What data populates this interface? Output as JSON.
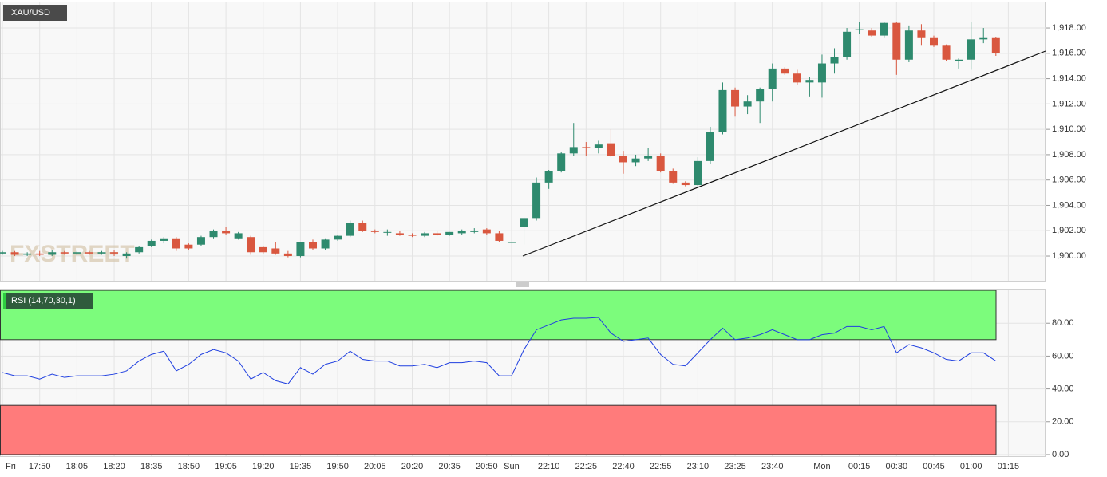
{
  "chart_data": [
    {
      "type": "candlestick",
      "title": "XAU/USD",
      "watermark": "FXSTREET",
      "categories": [
        "Fri",
        null,
        null,
        "17:50",
        null,
        null,
        "18:05",
        null,
        null,
        "18:20",
        null,
        null,
        "18:35",
        null,
        null,
        "18:50",
        null,
        null,
        "19:05",
        null,
        null,
        "19:20",
        null,
        null,
        "19:35",
        null,
        null,
        "19:50",
        null,
        null,
        "20:05",
        null,
        null,
        "20:20",
        null,
        null,
        "20:35",
        null,
        null,
        "20:50",
        null,
        "Sun",
        null,
        null,
        "22:10",
        null,
        null,
        "22:25",
        null,
        null,
        "22:40",
        null,
        null,
        "22:55",
        null,
        null,
        "23:10",
        null,
        null,
        "23:25",
        null,
        null,
        "23:40",
        null,
        null,
        null,
        "Mon",
        null,
        null,
        "00:15",
        null,
        null,
        "00:30",
        null,
        null,
        "00:45",
        null,
        null,
        "01:00",
        null,
        null,
        "01:15"
      ],
      "open": [
        1900.2,
        1900.3,
        1900.1,
        1900.2,
        1900.1,
        1900.3,
        1900.2,
        1900.3,
        1900.2,
        1900.3,
        1900.0,
        1900.3,
        1900.8,
        1901.2,
        1901.4,
        1900.9,
        1900.9,
        1901.5,
        1902.0,
        1901.4,
        1901.5,
        1900.7,
        1900.6,
        1900.2,
        1900.0,
        1901.1,
        1900.6,
        1901.3,
        1901.6,
        1902.6,
        1902.0,
        1901.9,
        1901.8,
        1901.7,
        1901.6,
        1901.8,
        1901.7,
        1901.8,
        1901.9,
        1902.1,
        1901.8,
        1901.1,
        1902.3,
        1903.0,
        1905.8,
        1906.7,
        1908.1,
        1908.6,
        1908.5,
        1908.9,
        1907.9,
        1907.4,
        1907.7,
        1907.9,
        1906.7,
        1905.8,
        1905.6,
        1907.5,
        1909.8,
        1913.1,
        1911.8,
        1912.2,
        1913.2,
        1914.8,
        1914.4,
        1913.7,
        1913.7,
        1915.2,
        1915.7,
        1917.9,
        1917.8,
        1917.4,
        1918.4,
        1915.5,
        1917.8,
        1917.2,
        1916.6,
        1915.4,
        1915.5,
        1917.1,
        1917.2,
        null
      ],
      "high": [
        1900.4,
        1900.4,
        1900.3,
        1900.4,
        1900.5,
        1900.4,
        1900.4,
        1900.4,
        1900.4,
        1900.5,
        1900.3,
        1900.8,
        1901.3,
        1901.5,
        1901.5,
        1901.0,
        1901.6,
        1902.1,
        1902.3,
        1901.9,
        1901.6,
        1900.8,
        1901.1,
        1900.4,
        1901.1,
        1901.3,
        1901.4,
        1901.7,
        1902.8,
        1902.8,
        1902.1,
        1902.1,
        1902.0,
        1901.8,
        1901.9,
        1902.0,
        1901.9,
        1902.1,
        1902.2,
        1902.2,
        1902.0,
        1901.1,
        1903.1,
        1906.2,
        1906.8,
        1908.2,
        1910.5,
        1909.0,
        1909.1,
        1910.0,
        1908.3,
        1908.0,
        1908.5,
        1908.1,
        1906.9,
        1905.9,
        1907.8,
        1910.2,
        1913.7,
        1913.3,
        1912.7,
        1913.3,
        1915.2,
        1914.9,
        1914.7,
        1914.1,
        1915.9,
        1916.4,
        1918.0,
        1918.5,
        1918.0,
        1918.5,
        1918.5,
        1918.2,
        1918.3,
        1917.4,
        1916.7,
        1915.6,
        1918.5,
        1918.0,
        1917.3,
        null
      ],
      "low": [
        1900.1,
        1900.0,
        1900.0,
        1900.0,
        1900.0,
        1900.1,
        1900.1,
        1900.1,
        1900.1,
        1900.0,
        1899.8,
        1900.2,
        1900.7,
        1901.0,
        1900.4,
        1900.5,
        1900.8,
        1901.4,
        1901.7,
        1901.3,
        1900.1,
        1900.2,
        1900.1,
        1899.9,
        1899.9,
        1900.5,
        1900.5,
        1901.2,
        1901.5,
        1901.9,
        1901.8,
        1901.6,
        1901.6,
        1901.5,
        1901.5,
        1901.6,
        1901.6,
        1901.7,
        1901.8,
        1901.7,
        1901.1,
        1901.1,
        1900.9,
        1902.8,
        1905.3,
        1906.6,
        1907.9,
        1907.9,
        1908.1,
        1907.8,
        1906.5,
        1907.1,
        1907.5,
        1906.6,
        1905.7,
        1905.5,
        1905.4,
        1907.3,
        1909.6,
        1911.0,
        1911.2,
        1910.5,
        1912.2,
        1914.3,
        1913.5,
        1912.6,
        1912.5,
        1914.4,
        1915.5,
        1917.5,
        1917.3,
        1917.2,
        1914.3,
        1915.3,
        1916.6,
        1916.5,
        1915.4,
        1914.8,
        1914.7,
        1916.8,
        1915.8,
        null
      ],
      "close": [
        1900.3,
        1900.1,
        1900.2,
        1900.1,
        1900.3,
        1900.2,
        1900.3,
        1900.2,
        1900.3,
        1900.2,
        1900.2,
        1900.7,
        1901.2,
        1901.4,
        1900.6,
        1900.6,
        1901.5,
        1902.0,
        1901.8,
        1901.8,
        1900.3,
        1900.3,
        1900.2,
        1900.0,
        1901.1,
        1900.6,
        1901.3,
        1901.6,
        1902.6,
        1902.0,
        1901.9,
        1901.9,
        1901.7,
        1901.6,
        1901.8,
        1901.7,
        1901.9,
        1902.0,
        1902.0,
        1901.8,
        1901.2,
        1901.1,
        1903.0,
        1905.8,
        1906.7,
        1908.1,
        1908.6,
        1908.5,
        1908.8,
        1907.9,
        1907.4,
        1907.7,
        1907.9,
        1906.7,
        1905.8,
        1905.6,
        1907.5,
        1909.8,
        1913.1,
        1911.8,
        1912.2,
        1913.2,
        1914.8,
        1914.4,
        1913.7,
        1913.9,
        1915.2,
        1915.7,
        1917.7,
        1917.9,
        1917.4,
        1918.4,
        1915.5,
        1917.8,
        1917.2,
        1916.6,
        1915.5,
        1915.5,
        1917.1,
        1917.2,
        1916.0,
        null
      ],
      "up_color": "#2e8a6e",
      "down_color": "#d9573f",
      "ylim": [
        1898.05,
        1920.08
      ],
      "yticks": [
        {
          "value": 1900,
          "label": "1,900.00"
        },
        {
          "value": 1902,
          "label": "1,902.00"
        },
        {
          "value": 1904,
          "label": "1,904.00"
        },
        {
          "value": 1906,
          "label": "1,906.00"
        },
        {
          "value": 1908,
          "label": "1,908.00"
        },
        {
          "value": 1910,
          "label": "1,910.00"
        },
        {
          "value": 1912,
          "label": "1,912.00"
        },
        {
          "value": 1914,
          "label": "1,914.00"
        },
        {
          "value": 1916,
          "label": "1,916.00"
        },
        {
          "value": 1918,
          "label": "1,918.00"
        }
      ],
      "grid": true
    },
    {
      "type": "line",
      "title": "RSI (14,70,30,1)",
      "color": "#1f3fe0",
      "values": [
        50,
        48,
        48,
        46,
        49,
        47,
        48,
        48,
        48,
        49,
        51,
        57,
        61,
        63,
        51,
        55,
        61,
        64,
        62,
        57,
        46,
        50,
        45,
        43,
        53,
        49,
        55,
        57,
        63,
        58,
        57,
        57,
        54,
        54,
        55,
        53,
        56,
        56,
        57,
        56,
        48,
        48,
        64,
        76,
        79,
        82,
        83,
        83,
        83.5,
        74,
        69,
        70,
        71,
        61,
        55,
        54,
        62,
        70,
        77,
        70,
        71,
        73,
        76,
        73,
        70,
        70,
        73,
        74,
        78,
        78,
        76,
        78,
        62,
        67,
        65,
        62,
        58,
        57,
        62,
        62,
        57,
        null
      ],
      "bands": [
        {
          "from": 70,
          "to": 100,
          "color": "#7cfc7c"
        },
        {
          "from": 0,
          "to": 30,
          "color": "#ff7b7b"
        }
      ],
      "ylim": [
        -1,
        101
      ],
      "yticks": [
        {
          "value": 0,
          "label": "0.00"
        },
        {
          "value": 20,
          "label": "20.00"
        },
        {
          "value": 40,
          "label": "40.00"
        },
        {
          "value": 60,
          "label": "60.00"
        },
        {
          "value": 80,
          "label": "80.00"
        }
      ],
      "grid": true
    }
  ]
}
